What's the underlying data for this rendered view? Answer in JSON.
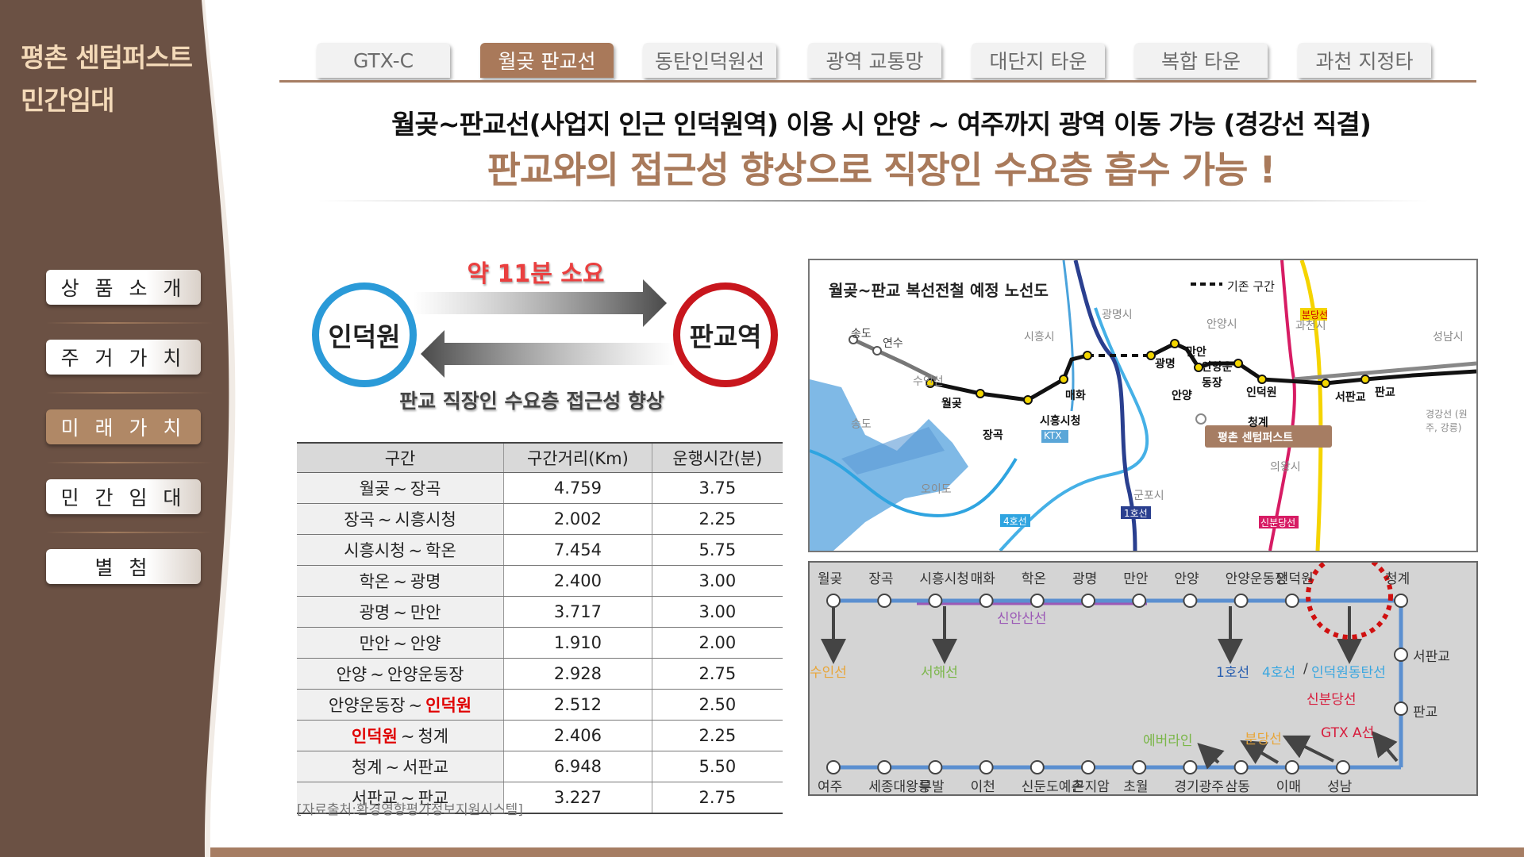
{
  "sidebar": {
    "brand_line1": "평촌 센텀퍼스트",
    "brand_line2": "민간임대",
    "items": [
      {
        "label": "상 품 소 개",
        "active": false
      },
      {
        "label": "주 거 가 치",
        "active": false
      },
      {
        "label": "미 래 가 치",
        "active": true
      },
      {
        "label": "민 간 임 대",
        "active": false
      },
      {
        "label": "별 첨",
        "active": false
      }
    ]
  },
  "tabs": [
    {
      "label": "GTX-C",
      "active": false
    },
    {
      "label": "월곶 판교선",
      "active": true
    },
    {
      "label": "동탄인덕원선",
      "active": false
    },
    {
      "label": "광역 교통망",
      "active": false
    },
    {
      "label": "대단지 타운",
      "active": false
    },
    {
      "label": "복합 타운",
      "active": false
    },
    {
      "label": "과천 지정타",
      "active": false
    }
  ],
  "headline": "월곶~판교선(사업지 인근 인덕원역) 이용 시 안양 ~ 여주까지 광역 이동 가능 (경강선 직결)",
  "subheadline": "판교와의 접근성 향상으로 직장인 수요층 흡수 가능 !",
  "route": {
    "from": "인덕원",
    "to": "판교역",
    "time": "약 11분 소요",
    "caption": "판교 직장인 수요층 접근성 향상"
  },
  "table": {
    "headers": [
      "구간",
      "구간거리(Km)",
      "운행시간(분)"
    ],
    "rows": [
      {
        "from": "월곶",
        "to": "장곡",
        "distance": "4.759",
        "time": "3.75"
      },
      {
        "from": "장곡",
        "to": "시흥시청",
        "distance": "2.002",
        "time": "2.25"
      },
      {
        "from": "시흥시청",
        "to": "학온",
        "distance": "7.454",
        "time": "5.75"
      },
      {
        "from": "학온",
        "to": "광명",
        "distance": "2.400",
        "time": "3.00"
      },
      {
        "from": "광명",
        "to": "만안",
        "distance": "3.717",
        "time": "3.00"
      },
      {
        "from": "만안",
        "to": "안양",
        "distance": "1.910",
        "time": "2.00"
      },
      {
        "from": "안양",
        "to": "안양운동장",
        "distance": "2.928",
        "time": "2.75"
      },
      {
        "from": "안양운동장",
        "to": "인덕원",
        "distance": "2.512",
        "time": "2.50"
      },
      {
        "from": "인덕원",
        "to": "청계",
        "distance": "2.406",
        "time": "2.25"
      },
      {
        "from": "청계",
        "to": "서판교",
        "distance": "6.948",
        "time": "5.50"
      },
      {
        "from": "서판교",
        "to": "판교",
        "distance": "3.227",
        "time": "2.75"
      }
    ],
    "highlight_station": "인덕원",
    "separator": "~"
  },
  "source": "[자료출처:환경영향평가정보지원시스템]",
  "map": {
    "title": "월곶~판교 복선전철 예정 노선도",
    "legend": "기존 구간",
    "stations": [
      "송도",
      "연수",
      "월곶",
      "장곡",
      "시흥시청",
      "매화",
      "광명",
      "만안",
      "안양",
      "안양운동장",
      "인덕원",
      "청계",
      "서판교",
      "판교"
    ],
    "places": [
      "수인선",
      "송도",
      "시흥시",
      "광명시",
      "안양시",
      "과천시",
      "성남시",
      "오이도",
      "군포시",
      "의왕시",
      "경강선 (원주, 강릉)"
    ],
    "line_tags": [
      "KTX",
      "4호선",
      "1호선",
      "분당선",
      "신분당선"
    ],
    "site_label": "평촌 센텀퍼스트"
  },
  "schematic": {
    "top_stations": [
      "월곶",
      "장곡",
      "시흥시청",
      "매화",
      "학온",
      "광명",
      "만안",
      "안양",
      "안양운동장",
      "인덕원",
      "청계"
    ],
    "right_stations": [
      "서판교",
      "판교"
    ],
    "bottom_stations": [
      "여주",
      "세종대왕릉",
      "부발",
      "이천",
      "신둔도예촌",
      "곤지암",
      "초월",
      "경기광주",
      "삼동",
      "이매",
      "성남"
    ],
    "connections": {
      "suin": "수인선",
      "seohae": "서해선",
      "sinansan": "신안산선",
      "line1": "1호선",
      "line4": "4호선",
      "idw_sep": "/",
      "idw": "인덕원동탄선",
      "sinbundang": "신분당선",
      "gtxa": "GTX A선",
      "bundang": "분당선",
      "everline": "에버라인"
    }
  },
  "colors": {
    "sidebar": "#6b5144",
    "accent": "#a9795a",
    "highlight": "#e00000",
    "circle_from": "#2a9ad8",
    "circle_to": "#c8161d",
    "line_main": "#5b8fd0"
  }
}
